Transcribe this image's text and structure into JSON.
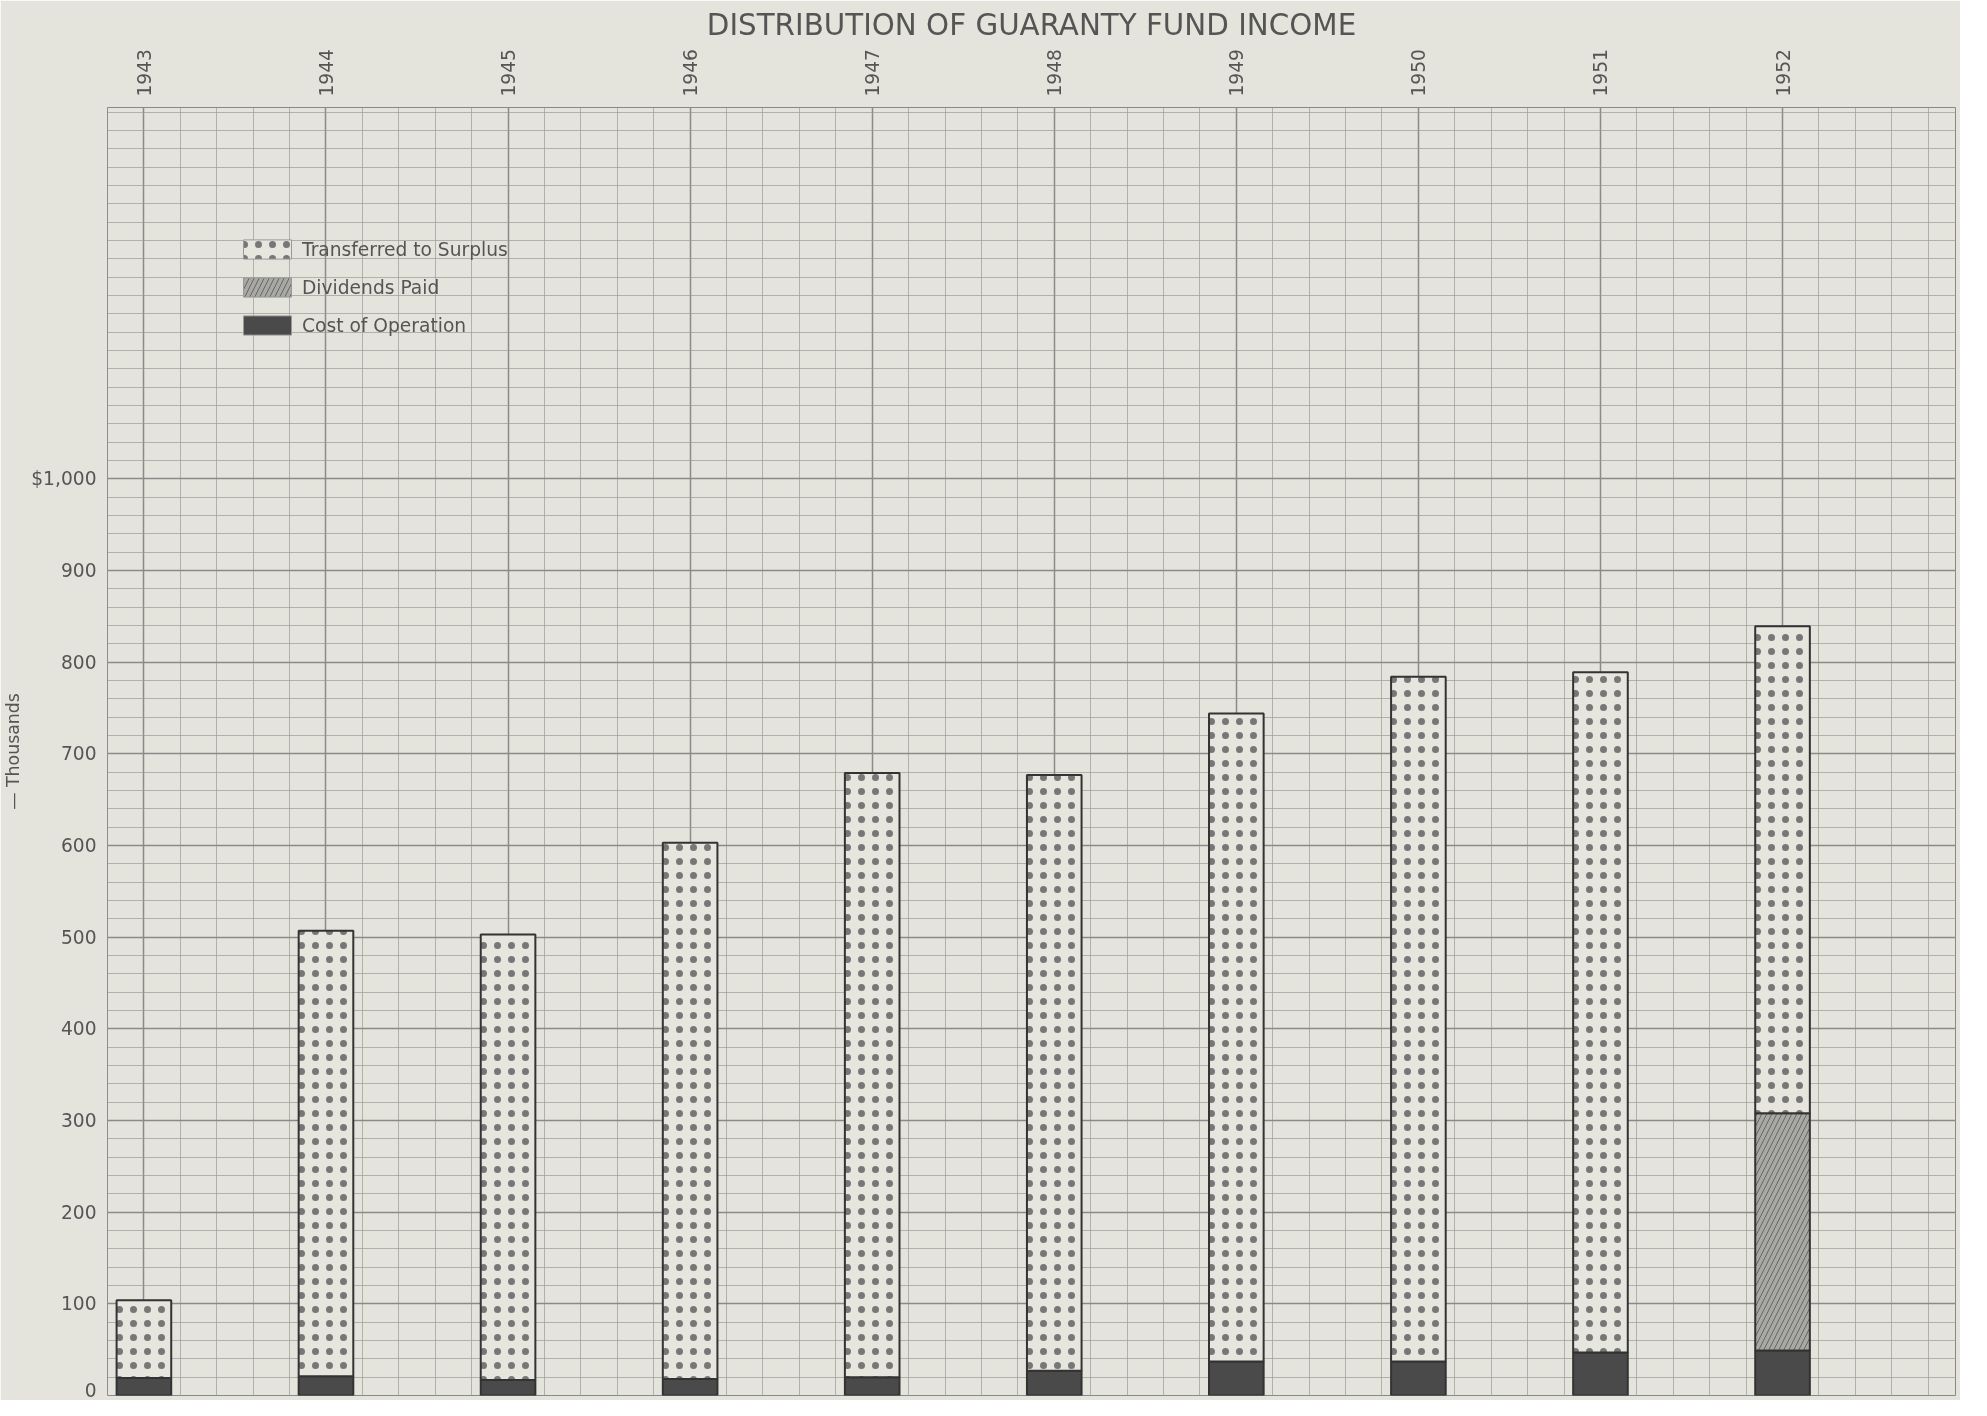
{
  "chart_data": {
    "type": "bar",
    "title": "DISTRIBUTION OF GUARANTY FUND INCOME",
    "ylabel": "— Thousands",
    "categories": [
      "1943",
      "1944",
      "1945",
      "1946",
      "1947",
      "1948",
      "1949",
      "1950",
      "1951",
      "1952"
    ],
    "stacked": true,
    "series": [
      {
        "name": "Cost of Operation",
        "color": "#4a4a4a",
        "values": [
          19,
          21,
          17,
          18,
          20,
          27,
          37,
          37,
          47,
          49
        ]
      },
      {
        "name": "Dividends Paid",
        "color": "#a8a8a4",
        "values": [
          0,
          0,
          0,
          0,
          0,
          0,
          0,
          0,
          0,
          259
        ]
      },
      {
        "name": "Transferred to Surplus",
        "color": "#e6e5de",
        "values": [
          85,
          486,
          486,
          585,
          659,
          650,
          707,
          747,
          742,
          531
        ]
      }
    ],
    "ylim": [
      0,
      1405
    ],
    "yticks": [
      0,
      100,
      200,
      300,
      400,
      500,
      600,
      700,
      800,
      900,
      {
        "value": 1000,
        "label": "$1,000"
      }
    ],
    "grid": true,
    "legend": "top left"
  }
}
